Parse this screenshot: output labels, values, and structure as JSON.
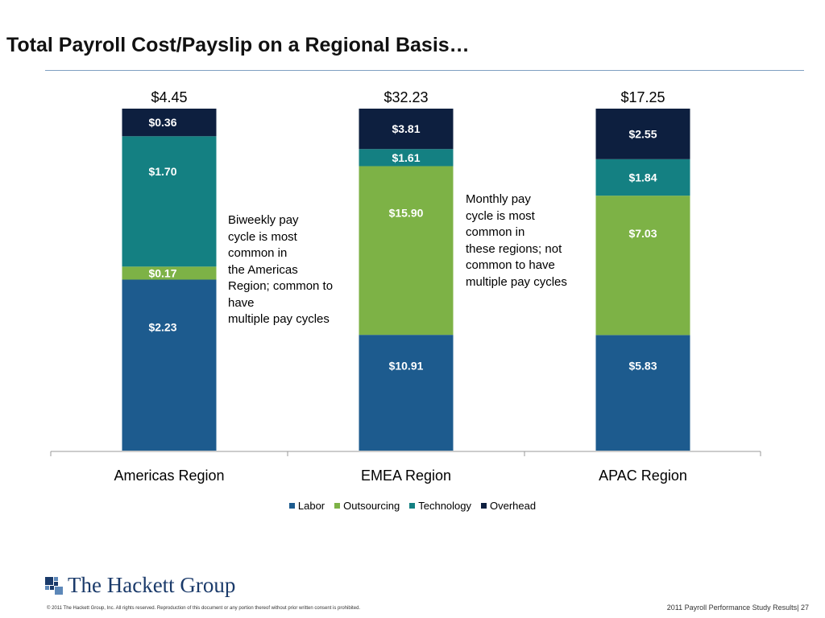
{
  "slide": {
    "title": "Total Payroll Cost/Payslip on a Regional Basis…"
  },
  "chart_data": {
    "type": "bar",
    "stacked": true,
    "categories": [
      "Americas Region",
      "EMEA Region",
      "APAC Region"
    ],
    "totals": [
      "$4.45",
      "$32.23",
      "$17.25"
    ],
    "series": [
      {
        "name": "Labor",
        "values": [
          2.23,
          10.91,
          5.83
        ],
        "labels": [
          "$2.23",
          "$10.91",
          "$5.83"
        ],
        "color": "#1d5b8e"
      },
      {
        "name": "Outsourcing",
        "values": [
          0.17,
          15.9,
          7.03
        ],
        "labels": [
          "$0.17",
          "$15.90",
          "$7.03"
        ],
        "color": "#7db246"
      },
      {
        "name": "Technology",
        "values": [
          1.7,
          1.61,
          1.84
        ],
        "labels": [
          "$1.70",
          "$1.61",
          "$1.84"
        ],
        "color": "#148082"
      },
      {
        "name": "Overhead",
        "values": [
          0.36,
          3.81,
          2.55
        ],
        "labels": [
          "$0.36",
          "$3.81",
          "$2.55"
        ],
        "color": "#0d1f3f"
      }
    ],
    "legend_position": "bottom",
    "grid": false
  },
  "annotations": {
    "americas": "Biweekly pay\ncycle is most\ncommon in\nthe Americas\nRegion; common to\nhave\nmultiple pay cycles",
    "monthly": "Monthly pay\ncycle is most\ncommon in\nthese regions; not\ncommon to have\nmultiple pay cycles"
  },
  "footer": {
    "logo_text": "The Hackett Group",
    "copyright": "© 2011 The Hackett Group, Inc. All rights reserved. Reproduction of this document or any portion thereof without prior written consent is prohibited.",
    "study": "2011 Payroll Performance Study Results| 27"
  }
}
